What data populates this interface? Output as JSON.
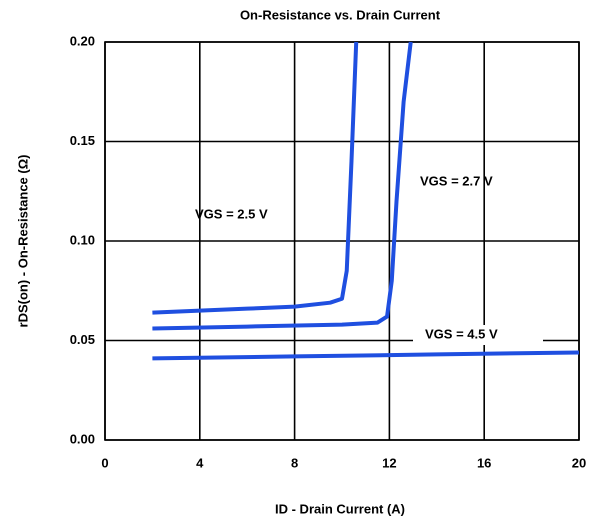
{
  "chart_data": {
    "type": "line",
    "title": "On-Resistance vs. Drain Current",
    "xlabel": "ID - Drain Current (A)",
    "ylabel": "rDS(on) - On-Resistance (Ω)",
    "xlim": [
      0,
      20
    ],
    "xticks": [
      0,
      4,
      8,
      12,
      16,
      20
    ],
    "ylim": [
      0,
      0.2
    ],
    "yticks": [
      {
        "value": 0,
        "label": "0.00"
      },
      {
        "value": 0.05,
        "label": "0.05"
      },
      {
        "value": 0.1,
        "label": "0.10"
      },
      {
        "value": 0.15,
        "label": "0.15"
      },
      {
        "value": 0.2,
        "label": "0.20"
      }
    ],
    "grid": true,
    "series": [
      {
        "name": "VGS = 2.5 V",
        "color": "#1f4fe0",
        "x": [
          2,
          4,
          6,
          8,
          9.5,
          10,
          10.2,
          10.4,
          10.6
        ],
        "values": [
          0.064,
          0.065,
          0.066,
          0.067,
          0.069,
          0.071,
          0.085,
          0.14,
          0.2
        ]
      },
      {
        "name": "VGS = 2.7 V",
        "color": "#1f4fe0",
        "x": [
          2,
          6,
          10,
          11.5,
          11.9,
          12.1,
          12.3,
          12.6,
          12.9
        ],
        "values": [
          0.056,
          0.057,
          0.058,
          0.059,
          0.062,
          0.08,
          0.12,
          0.17,
          0.2
        ]
      },
      {
        "name": "VGS = 4.5 V",
        "color": "#1f4fe0",
        "x": [
          2,
          8,
          14,
          20
        ],
        "values": [
          0.041,
          0.042,
          0.043,
          0.044
        ]
      }
    ]
  }
}
